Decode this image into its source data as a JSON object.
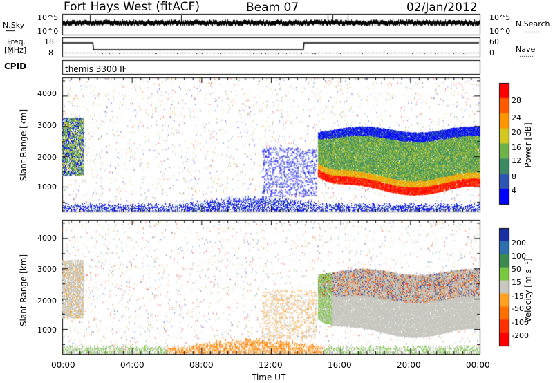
{
  "header": {
    "station": "Fort Hays West (fitACF)",
    "beam": "Beam 07",
    "date": "02/Jan/2012"
  },
  "top_panels": {
    "nsky_label": "N.Sky",
    "nsky_ticks": [
      "10^5",
      "10^0"
    ],
    "nsearch_label": "N.Search",
    "nsearch_ticks": [
      "10^5",
      "10^0"
    ],
    "freq_label_line1": "Freq.",
    "freq_label_line2": "[MHz]",
    "freq_ticks": [
      "18",
      "8"
    ],
    "nave_label": "Nave",
    "nave_ticks": [
      "60",
      "0"
    ],
    "cpid_label": "CPID",
    "cpid_value": "themis 3300 IF"
  },
  "panels": {
    "power": {
      "ylabel": "Slant Range [km]",
      "yticks": [
        "1000",
        "2000",
        "3000",
        "4000"
      ],
      "colorbar_label": "Power [dB]",
      "colorbar_ticks": [
        "4",
        "8",
        "12",
        "16",
        "20",
        "24",
        "28"
      ],
      "colors": [
        "#0000ff",
        "#2f55b2",
        "#3b8a64",
        "#6fb24a",
        "#d2c820",
        "#ff9600",
        "#ff5a00",
        "#ff0000"
      ]
    },
    "velocity": {
      "ylabel": "Slant Range [km]",
      "yticks": [
        "1000",
        "2000",
        "3000",
        "4000"
      ],
      "colorbar_label": "Velocity [m s⁻¹]",
      "colorbar_ticks": [
        "200",
        "100",
        "50",
        "15",
        "-15",
        "-50",
        "-100",
        "-200"
      ],
      "colors": [
        "#1a2fa0",
        "#2e6fb0",
        "#3a8a50",
        "#7ac840",
        "#c8c8c0",
        "#ffa020",
        "#ff7000",
        "#ff3000",
        "#ff0000"
      ]
    }
  },
  "xaxis": {
    "label": "Time UT",
    "ticks": [
      "00:00",
      "04:00",
      "08:00",
      "12:00",
      "16:00",
      "20:00",
      "00:00"
    ]
  },
  "chart_data": {
    "type": "heatmap",
    "title": "Fort Hays West (fitACF)",
    "x_range_hours_UT": [
      0,
      24
    ],
    "y_range_km": [
      180,
      4600
    ],
    "frequency_mhz_segments": [
      {
        "from_hour": 0,
        "to_hour": 1.8,
        "freq_mhz": 18
      },
      {
        "from_hour": 1.8,
        "to_hour": 13.9,
        "freq_mhz": 8
      },
      {
        "from_hour": 13.9,
        "to_hour": 24,
        "freq_mhz": 18
      }
    ],
    "power_features": [
      {
        "name": "early echo",
        "from_hour": 0.0,
        "to_hour": 1.2,
        "range_km": [
          1200,
          3400
        ],
        "power_db": 16
      },
      {
        "name": "strong band",
        "from_hour": 14.8,
        "to_hour": 24,
        "range_km": [
          700,
          1800
        ],
        "power_db": 28
      },
      {
        "name": "upper band",
        "from_hour": 15.2,
        "to_hour": 24,
        "range_km": [
          1800,
          3000
        ],
        "power_db": 14
      },
      {
        "name": "near-range ground",
        "from_hour": 0,
        "to_hour": 24,
        "range_km": [
          180,
          400
        ],
        "power_db": 8
      }
    ],
    "velocity_features": [
      {
        "name": "early echo",
        "from_hour": 0.0,
        "to_hour": 1.2,
        "range_km": [
          1200,
          3400
        ],
        "velocity_ms": 0
      },
      {
        "name": "main region",
        "from_hour": 14.8,
        "to_hour": 24,
        "range_km": [
          900,
          2800
        ],
        "velocity_ms": 0
      },
      {
        "name": "near-range midday",
        "from_hour": 7,
        "to_hour": 15,
        "range_km": [
          180,
          700
        ],
        "velocity_ms": -60
      }
    ]
  }
}
